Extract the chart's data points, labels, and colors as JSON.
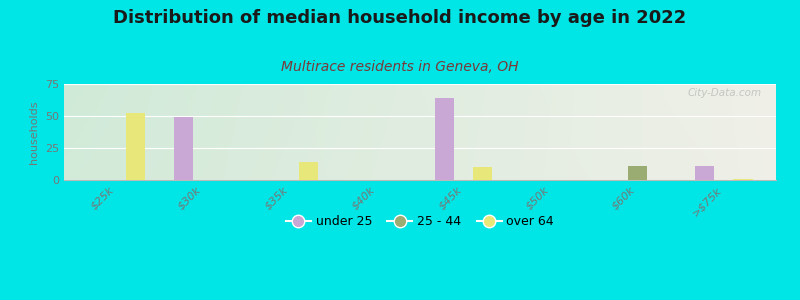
{
  "title": "Distribution of median household income by age in 2022",
  "subtitle": "Multirace residents in Geneva, OH",
  "ylabel": "households",
  "categories": [
    "$25k",
    "$30k",
    "$35k",
    "$40k",
    "$45k",
    "$50k",
    "$60k",
    ">$75k"
  ],
  "series": {
    "under 25": [
      0,
      49,
      0,
      0,
      64,
      0,
      0,
      11
    ],
    "25 - 44": [
      0,
      0,
      0,
      0,
      0,
      0,
      11,
      0
    ],
    "over 64": [
      52,
      0,
      14,
      0,
      10,
      0,
      0,
      1
    ]
  },
  "colors": {
    "under 25": "#c9a8d5",
    "25 - 44": "#9aac72",
    "over 64": "#e8e87a"
  },
  "ylim": [
    0,
    75
  ],
  "yticks": [
    0,
    25,
    50,
    75
  ],
  "bar_width": 0.22,
  "background_color": "#00e5e5",
  "title_fontsize": 13,
  "subtitle_fontsize": 10,
  "subtitle_color": "#7a3a3a",
  "title_color": "#1a1a1a",
  "watermark": "City-Data.com",
  "tick_color": "#777777",
  "ylabel_color": "#777777"
}
